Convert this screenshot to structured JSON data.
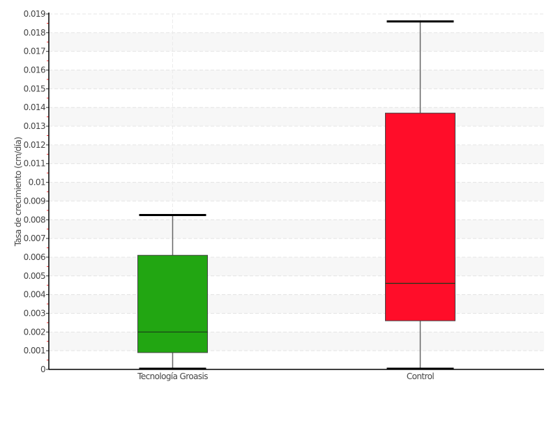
{
  "chart_data": {
    "type": "boxplot",
    "title": "",
    "xlabel": "",
    "ylabel": "Tasa de crecimiento (cm/día)",
    "ylim": [
      0,
      0.019
    ],
    "y_ticks": [
      "0",
      "0.001",
      "0.002",
      "0.003",
      "0.004",
      "0.005",
      "0.006",
      "0.007",
      "0.008",
      "0.009",
      "0.01",
      "0.011",
      "0.012",
      "0.013",
      "0.014",
      "0.015",
      "0.016",
      "0.017",
      "0.018",
      "0.019"
    ],
    "grid": true,
    "categories": [
      "Tecnología Groasis",
      "Control"
    ],
    "boxes": [
      {
        "category": "Tecnología Groasis",
        "min": 0.0,
        "q1": 0.0009,
        "median": 0.002,
        "q3": 0.0061,
        "max": 0.00825,
        "color": "#22a612"
      },
      {
        "category": "Control",
        "min": 0.0,
        "q1": 0.0026,
        "median": 0.0046,
        "q3": 0.0137,
        "max": 0.0186,
        "color": "#ff0d29"
      }
    ]
  }
}
